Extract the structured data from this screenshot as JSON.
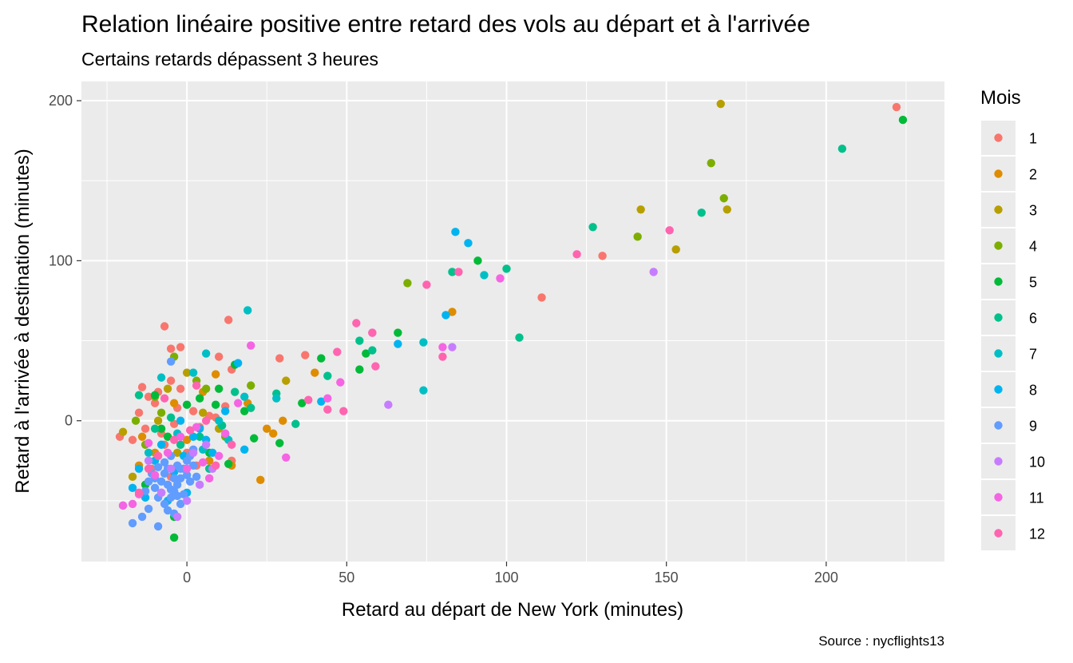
{
  "chart_data": {
    "type": "scatter",
    "title": "Relation linéaire positive entre retard des vols au départ et à l'arrivée",
    "subtitle": "Certains retards dépassent 3 heures",
    "xlabel": "Retard au départ de New York (minutes)",
    "ylabel": "Retard à l'arrivée à destination (minutes)",
    "caption": "Source : nycflights13",
    "xlim": [
      -33,
      237
    ],
    "ylim": [
      -88,
      212
    ],
    "x_ticks": [
      0,
      50,
      100,
      150,
      200
    ],
    "y_ticks": [
      0,
      100,
      200
    ],
    "grid": true,
    "legend": {
      "title": "Mois",
      "position": "right",
      "items": [
        {
          "label": "1",
          "color": "#F8766D"
        },
        {
          "label": "2",
          "color": "#DE8C00"
        },
        {
          "label": "3",
          "color": "#B79F00"
        },
        {
          "label": "4",
          "color": "#7CAE00"
        },
        {
          "label": "5",
          "color": "#00BA38"
        },
        {
          "label": "6",
          "color": "#00C08B"
        },
        {
          "label": "7",
          "color": "#00BFC4"
        },
        {
          "label": "8",
          "color": "#00B4F0"
        },
        {
          "label": "9",
          "color": "#619CFF"
        },
        {
          "label": "10",
          "color": "#C77CFF"
        },
        {
          "label": "11",
          "color": "#F564E3"
        },
        {
          "label": "12",
          "color": "#FF64B0"
        }
      ]
    },
    "series": [
      {
        "name": "1",
        "points": [
          [
            222,
            196
          ],
          [
            130,
            103
          ],
          [
            111,
            77
          ],
          [
            -7,
            59
          ],
          [
            13,
            63
          ],
          [
            -2,
            46
          ],
          [
            -5,
            45
          ],
          [
            10,
            40
          ],
          [
            29,
            39
          ],
          [
            37,
            41
          ],
          [
            14,
            32
          ],
          [
            -14,
            21
          ],
          [
            -5,
            25
          ],
          [
            -2,
            20
          ],
          [
            -9,
            18
          ],
          [
            -12,
            15
          ],
          [
            -10,
            11
          ],
          [
            -15,
            5
          ],
          [
            -3,
            8
          ],
          [
            2,
            6
          ],
          [
            7,
            3
          ],
          [
            12,
            9
          ],
          [
            -21,
            -10
          ],
          [
            -17,
            -12
          ],
          [
            -13,
            -5
          ],
          [
            -8,
            -8
          ],
          [
            -4,
            -2
          ],
          [
            4,
            -4
          ],
          [
            9,
            2
          ],
          [
            -7,
            -15
          ],
          [
            0,
            -20
          ],
          [
            14,
            -25
          ],
          [
            -11,
            -30
          ],
          [
            -5,
            -35
          ],
          [
            3,
            -28
          ]
        ]
      },
      {
        "name": "2",
        "points": [
          [
            83,
            68
          ],
          [
            40,
            30
          ],
          [
            30,
            0
          ],
          [
            25,
            -5
          ],
          [
            27,
            -8
          ],
          [
            23,
            -37
          ],
          [
            -14,
            -10
          ],
          [
            9,
            29
          ],
          [
            -4,
            11
          ],
          [
            5,
            18
          ],
          [
            19,
            11
          ],
          [
            -10,
            -20
          ],
          [
            -15,
            -28
          ],
          [
            0,
            -12
          ],
          [
            7,
            -25
          ],
          [
            14,
            -28
          ]
        ]
      },
      {
        "name": "3",
        "points": [
          [
            167,
            198
          ],
          [
            142,
            132
          ],
          [
            169,
            132
          ],
          [
            153,
            107
          ],
          [
            -17,
            -35
          ],
          [
            -3,
            -20
          ],
          [
            5,
            5
          ],
          [
            10,
            -5
          ],
          [
            -9,
            0
          ],
          [
            -20,
            -7
          ],
          [
            31,
            25
          ],
          [
            0,
            30
          ],
          [
            -6,
            20
          ]
        ]
      },
      {
        "name": "4",
        "points": [
          [
            164,
            161
          ],
          [
            168,
            139
          ],
          [
            141,
            115
          ],
          [
            69,
            86
          ],
          [
            -16,
            0
          ],
          [
            -10,
            15
          ],
          [
            -4,
            40
          ],
          [
            3,
            25
          ],
          [
            -8,
            5
          ],
          [
            12,
            -10
          ],
          [
            -13,
            -15
          ],
          [
            6,
            20
          ],
          [
            20,
            22
          ]
        ]
      },
      {
        "name": "5",
        "points": [
          [
            224,
            188
          ],
          [
            91,
            100
          ],
          [
            66,
            55
          ],
          [
            56,
            42
          ],
          [
            54,
            32
          ],
          [
            42,
            39
          ],
          [
            36,
            11
          ],
          [
            29,
            -14
          ],
          [
            21,
            -11
          ],
          [
            15,
            35
          ],
          [
            -4,
            -73
          ],
          [
            -4,
            -60
          ],
          [
            -13,
            -40
          ],
          [
            -10,
            16
          ],
          [
            0,
            10
          ],
          [
            9,
            10
          ],
          [
            13,
            -27
          ],
          [
            7,
            -20
          ],
          [
            -6,
            -10
          ],
          [
            18,
            6
          ],
          [
            -8,
            -5
          ],
          [
            4,
            14
          ],
          [
            10,
            20
          ]
        ]
      },
      {
        "name": "6",
        "points": [
          [
            205,
            170
          ],
          [
            161,
            130
          ],
          [
            127,
            121
          ],
          [
            104,
            52
          ],
          [
            100,
            95
          ],
          [
            83,
            93
          ],
          [
            58,
            44
          ],
          [
            54,
            50
          ],
          [
            44,
            28
          ],
          [
            34,
            -2
          ],
          [
            28,
            17
          ],
          [
            -15,
            16
          ],
          [
            -10,
            -5
          ],
          [
            -5,
            2
          ],
          [
            4,
            -10
          ],
          [
            11,
            -3
          ],
          [
            -2,
            -15
          ],
          [
            7,
            -30
          ],
          [
            15,
            18
          ],
          [
            20,
            8
          ]
        ]
      },
      {
        "name": "7",
        "points": [
          [
            93,
            91
          ],
          [
            74,
            49
          ],
          [
            74,
            19
          ],
          [
            19,
            69
          ],
          [
            6,
            42
          ],
          [
            -8,
            27
          ],
          [
            2,
            30
          ],
          [
            10,
            0
          ],
          [
            -12,
            -20
          ],
          [
            -3,
            -8
          ],
          [
            5,
            -18
          ],
          [
            13,
            -12
          ],
          [
            18,
            15
          ],
          [
            28,
            14
          ]
        ]
      },
      {
        "name": "8",
        "points": [
          [
            84,
            118
          ],
          [
            88,
            111
          ],
          [
            81,
            66
          ],
          [
            66,
            48
          ],
          [
            42,
            12
          ],
          [
            16,
            36
          ],
          [
            -17,
            -42
          ],
          [
            -10,
            -25
          ],
          [
            -6,
            -50
          ],
          [
            -2,
            0
          ],
          [
            2,
            -10
          ],
          [
            8,
            -20
          ],
          [
            -13,
            -48
          ],
          [
            -4,
            -32
          ],
          [
            0,
            -45
          ],
          [
            4,
            -5
          ],
          [
            -8,
            -15
          ],
          [
            12,
            6
          ],
          [
            18,
            -18
          ],
          [
            -15,
            -30
          ],
          [
            -1,
            -22
          ],
          [
            6,
            -12
          ]
        ]
      },
      {
        "name": "9",
        "points": [
          [
            -17,
            -64
          ],
          [
            -14,
            -60
          ],
          [
            -12,
            -55
          ],
          [
            -9,
            -66
          ],
          [
            -7,
            -52
          ],
          [
            -5,
            -48
          ],
          [
            -4,
            -44
          ],
          [
            -3,
            -40
          ],
          [
            -2,
            -36
          ],
          [
            -1,
            -30
          ],
          [
            0,
            -25
          ],
          [
            1,
            -22
          ],
          [
            2,
            -18
          ],
          [
            3,
            -35
          ],
          [
            -6,
            -30
          ],
          [
            -8,
            -38
          ],
          [
            -10,
            -42
          ],
          [
            -11,
            -33
          ],
          [
            -7,
            -26
          ],
          [
            -5,
            -22
          ],
          [
            -3,
            -28
          ],
          [
            -1,
            -46
          ],
          [
            1,
            -38
          ],
          [
            -6,
            -56
          ],
          [
            -9,
            -48
          ],
          [
            -4,
            -58
          ],
          [
            -2,
            -52
          ],
          [
            -13,
            -44
          ],
          [
            -10,
            -36
          ],
          [
            -8,
            -45
          ],
          [
            -6,
            -40
          ],
          [
            -4,
            -36
          ],
          [
            -2,
            -30
          ],
          [
            0,
            -34
          ],
          [
            2,
            -28
          ],
          [
            -7,
            -33
          ],
          [
            -5,
            -43
          ],
          [
            -3,
            -47
          ],
          [
            -9,
            -29
          ],
          [
            -12,
            -38
          ],
          [
            -5,
            37
          ]
        ]
      },
      {
        "name": "10",
        "points": [
          [
            146,
            93
          ],
          [
            83,
            46
          ],
          [
            63,
            10
          ],
          [
            -20,
            -53
          ],
          [
            -8,
            -45
          ],
          [
            -3,
            -60
          ],
          [
            0,
            -50
          ],
          [
            4,
            -40
          ],
          [
            8,
            -30
          ],
          [
            -5,
            -30
          ],
          [
            2,
            -20
          ],
          [
            -12,
            -25
          ],
          [
            6,
            -15
          ]
        ]
      },
      {
        "name": "11",
        "points": [
          [
            98,
            89
          ],
          [
            80,
            46
          ],
          [
            58,
            55
          ],
          [
            44,
            14
          ],
          [
            48,
            24
          ],
          [
            31,
            -23
          ],
          [
            20,
            47
          ],
          [
            16,
            11
          ],
          [
            12,
            -8
          ],
          [
            -20,
            -53
          ],
          [
            -17,
            -52
          ],
          [
            -15,
            -46
          ],
          [
            -10,
            -34
          ],
          [
            -6,
            -20
          ],
          [
            -2,
            -10
          ],
          [
            3,
            -4
          ],
          [
            7,
            -36
          ],
          [
            10,
            -22
          ],
          [
            -12,
            -14
          ],
          [
            0,
            -30
          ],
          [
            5,
            -26
          ]
        ]
      },
      {
        "name": "12",
        "points": [
          [
            151,
            119
          ],
          [
            122,
            104
          ],
          [
            85,
            93
          ],
          [
            75,
            85
          ],
          [
            53,
            61
          ],
          [
            58,
            55
          ],
          [
            59,
            34
          ],
          [
            47,
            43
          ],
          [
            49,
            6
          ],
          [
            38,
            13
          ],
          [
            44,
            7
          ],
          [
            80,
            40
          ],
          [
            -15,
            -45
          ],
          [
            -9,
            -22
          ],
          [
            -4,
            -12
          ],
          [
            1,
            -6
          ],
          [
            6,
            0
          ],
          [
            9,
            -28
          ],
          [
            14,
            -15
          ],
          [
            -7,
            14
          ],
          [
            3,
            22
          ],
          [
            -12,
            -30
          ]
        ]
      }
    ]
  }
}
